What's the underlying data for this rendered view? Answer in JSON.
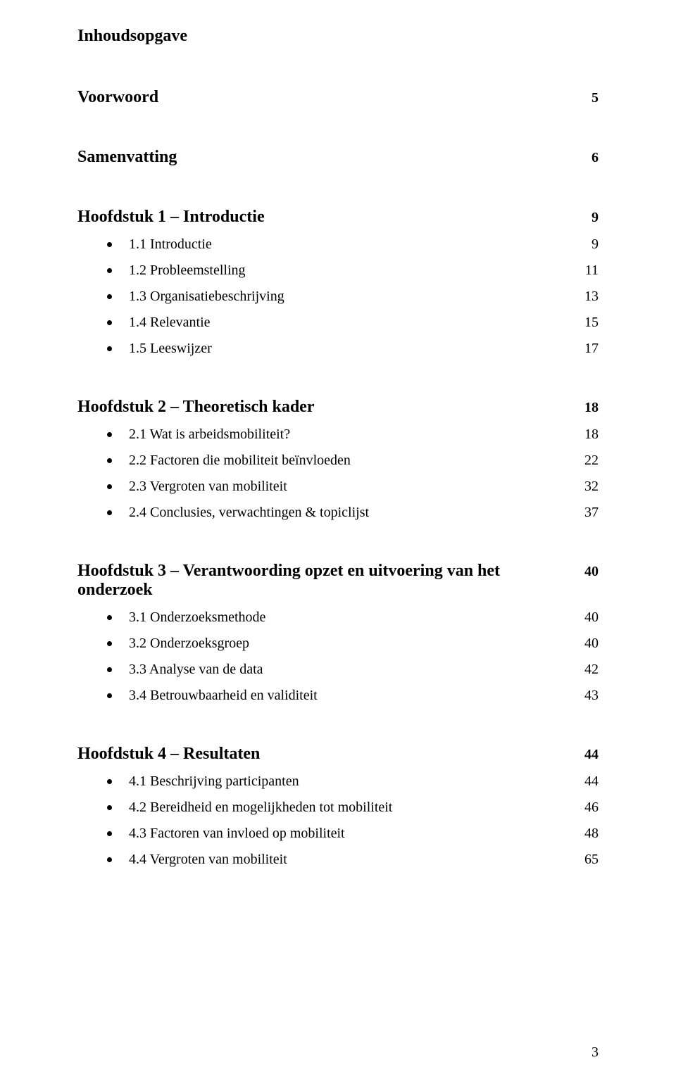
{
  "title": "Inhoudsopgave",
  "sections": {
    "voorwoord": {
      "label": "Voorwoord",
      "page": "5"
    },
    "samenvatting": {
      "label": "Samenvatting",
      "page": "6"
    },
    "h1": {
      "label": "Hoofdstuk 1 – Introductie",
      "page": "9",
      "items": [
        {
          "label": "1.1 Introductie",
          "page": "9"
        },
        {
          "label": "1.2 Probleemstelling",
          "page": "11"
        },
        {
          "label": "1.3 Organisatiebeschrijving",
          "page": "13"
        },
        {
          "label": "1.4 Relevantie",
          "page": "15"
        },
        {
          "label": "1.5 Leeswijzer",
          "page": "17"
        }
      ]
    },
    "h2": {
      "label": "Hoofdstuk 2 – Theoretisch kader",
      "page": "18",
      "items": [
        {
          "label": "2.1 Wat is arbeidsmobiliteit?",
          "page": "18"
        },
        {
          "label": "2.2 Factoren die mobiliteit beïnvloeden",
          "page": "22"
        },
        {
          "label": "2.3 Vergroten van mobiliteit",
          "page": "32"
        },
        {
          "label": "2.4 Conclusies, verwachtingen & topiclijst",
          "page": "37"
        }
      ]
    },
    "h3": {
      "label": "Hoofdstuk 3 – Verantwoording opzet en uitvoering van het onderzoek",
      "page": "40",
      "items": [
        {
          "label": "3.1 Onderzoeksmethode",
          "page": "40"
        },
        {
          "label": "3.2 Onderzoeksgroep",
          "page": "40"
        },
        {
          "label": "3.3 Analyse van de data",
          "page": "42"
        },
        {
          "label": "3.4 Betrouwbaarheid en validiteit",
          "page": "43"
        }
      ]
    },
    "h4": {
      "label": "Hoofdstuk 4 – Resultaten",
      "page": "44",
      "items": [
        {
          "label": "4.1 Beschrijving participanten",
          "page": "44"
        },
        {
          "label": "4.2 Bereidheid en mogelijkheden tot mobiliteit",
          "page": "46"
        },
        {
          "label": "4.3 Factoren van invloed op mobiliteit",
          "page": "48"
        },
        {
          "label": "4.4 Vergroten van mobiliteit",
          "page": "65"
        }
      ]
    }
  },
  "footer_page_number": "3",
  "style": {
    "background_color": "#ffffff",
    "text_color": "#000000",
    "font_family": "Times New Roman",
    "title_fontsize": 24,
    "body_fontsize": 20,
    "bullet_color": "#000000"
  }
}
